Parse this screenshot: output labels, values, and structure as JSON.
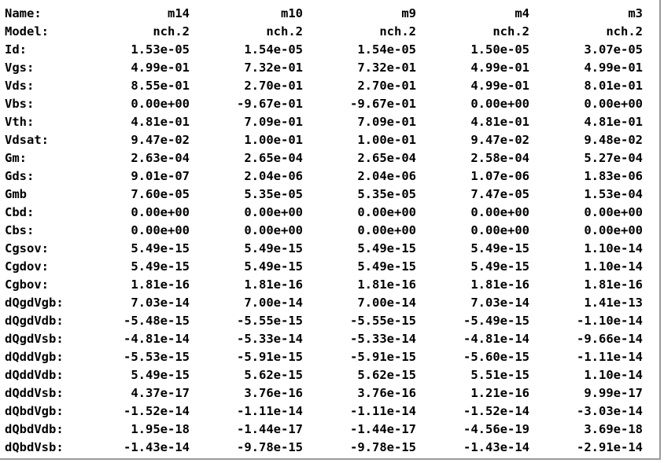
{
  "columns": [
    "m14",
    "m10",
    "m9",
    "m4",
    "m3"
  ],
  "rows": [
    {
      "label": "Name:",
      "values": [
        "m14",
        "m10",
        "m9",
        "m4",
        "m3"
      ]
    },
    {
      "label": "Model:",
      "values": [
        "nch.2",
        "nch.2",
        "nch.2",
        "nch.2",
        "nch.2"
      ]
    },
    {
      "label": "Id:",
      "values": [
        "1.53e-05",
        "1.54e-05",
        "1.54e-05",
        "1.50e-05",
        "3.07e-05"
      ]
    },
    {
      "label": "Vgs:",
      "values": [
        "4.99e-01",
        "7.32e-01",
        "7.32e-01",
        "4.99e-01",
        "4.99e-01"
      ]
    },
    {
      "label": "Vds:",
      "values": [
        "8.55e-01",
        "2.70e-01",
        "2.70e-01",
        "4.99e-01",
        "8.01e-01"
      ]
    },
    {
      "label": "Vbs:",
      "values": [
        "0.00e+00",
        "-9.67e-01",
        "-9.67e-01",
        "0.00e+00",
        "0.00e+00"
      ]
    },
    {
      "label": "Vth:",
      "values": [
        "4.81e-01",
        "7.09e-01",
        "7.09e-01",
        "4.81e-01",
        "4.81e-01"
      ]
    },
    {
      "label": "Vdsat:",
      "values": [
        "9.47e-02",
        "1.00e-01",
        "1.00e-01",
        "9.47e-02",
        "9.48e-02"
      ]
    },
    {
      "label": "Gm:",
      "values": [
        "2.63e-04",
        "2.65e-04",
        "2.65e-04",
        "2.58e-04",
        "5.27e-04"
      ]
    },
    {
      "label": "Gds:",
      "values": [
        "9.01e-07",
        "2.04e-06",
        "2.04e-06",
        "1.07e-06",
        "1.83e-06"
      ]
    },
    {
      "label": "Gmb",
      "values": [
        "7.60e-05",
        "5.35e-05",
        "5.35e-05",
        "7.47e-05",
        "1.53e-04"
      ]
    },
    {
      "label": "Cbd:",
      "values": [
        "0.00e+00",
        "0.00e+00",
        "0.00e+00",
        "0.00e+00",
        "0.00e+00"
      ]
    },
    {
      "label": "Cbs:",
      "values": [
        "0.00e+00",
        "0.00e+00",
        "0.00e+00",
        "0.00e+00",
        "0.00e+00"
      ]
    },
    {
      "label": "Cgsov:",
      "values": [
        "5.49e-15",
        "5.49e-15",
        "5.49e-15",
        "5.49e-15",
        "1.10e-14"
      ]
    },
    {
      "label": "Cgdov:",
      "values": [
        "5.49e-15",
        "5.49e-15",
        "5.49e-15",
        "5.49e-15",
        "1.10e-14"
      ]
    },
    {
      "label": "Cgbov:",
      "values": [
        "1.81e-16",
        "1.81e-16",
        "1.81e-16",
        "1.81e-16",
        "1.81e-16"
      ]
    },
    {
      "label": "dQgdVgb:",
      "values": [
        "7.03e-14",
        "7.00e-14",
        "7.00e-14",
        "7.03e-14",
        "1.41e-13"
      ]
    },
    {
      "label": "dQgdVdb:",
      "values": [
        "-5.48e-15",
        "-5.55e-15",
        "-5.55e-15",
        "-5.49e-15",
        "-1.10e-14"
      ]
    },
    {
      "label": "dQgdVsb:",
      "values": [
        "-4.81e-14",
        "-5.33e-14",
        "-5.33e-14",
        "-4.81e-14",
        "-9.66e-14"
      ]
    },
    {
      "label": "dQddVgb:",
      "values": [
        "-5.53e-15",
        "-5.91e-15",
        "-5.91e-15",
        "-5.60e-15",
        "-1.11e-14"
      ]
    },
    {
      "label": "dQddVdb:",
      "values": [
        "5.49e-15",
        "5.62e-15",
        "5.62e-15",
        "5.51e-15",
        "1.10e-14"
      ]
    },
    {
      "label": "dQddVsb:",
      "values": [
        "4.37e-17",
        "3.76e-16",
        "3.76e-16",
        "1.21e-16",
        "9.99e-17"
      ]
    },
    {
      "label": "dQbdVgb:",
      "values": [
        "-1.52e-14",
        "-1.11e-14",
        "-1.11e-14",
        "-1.52e-14",
        "-3.03e-14"
      ]
    },
    {
      "label": "dQbdVdb:",
      "values": [
        "1.95e-18",
        "-1.44e-17",
        "-1.44e-17",
        "-4.56e-19",
        "3.69e-18"
      ]
    },
    {
      "label": "dQbdVsb:",
      "values": [
        "-1.43e-14",
        "-9.78e-15",
        "-9.78e-15",
        "-1.43e-14",
        "-2.91e-14"
      ]
    }
  ]
}
